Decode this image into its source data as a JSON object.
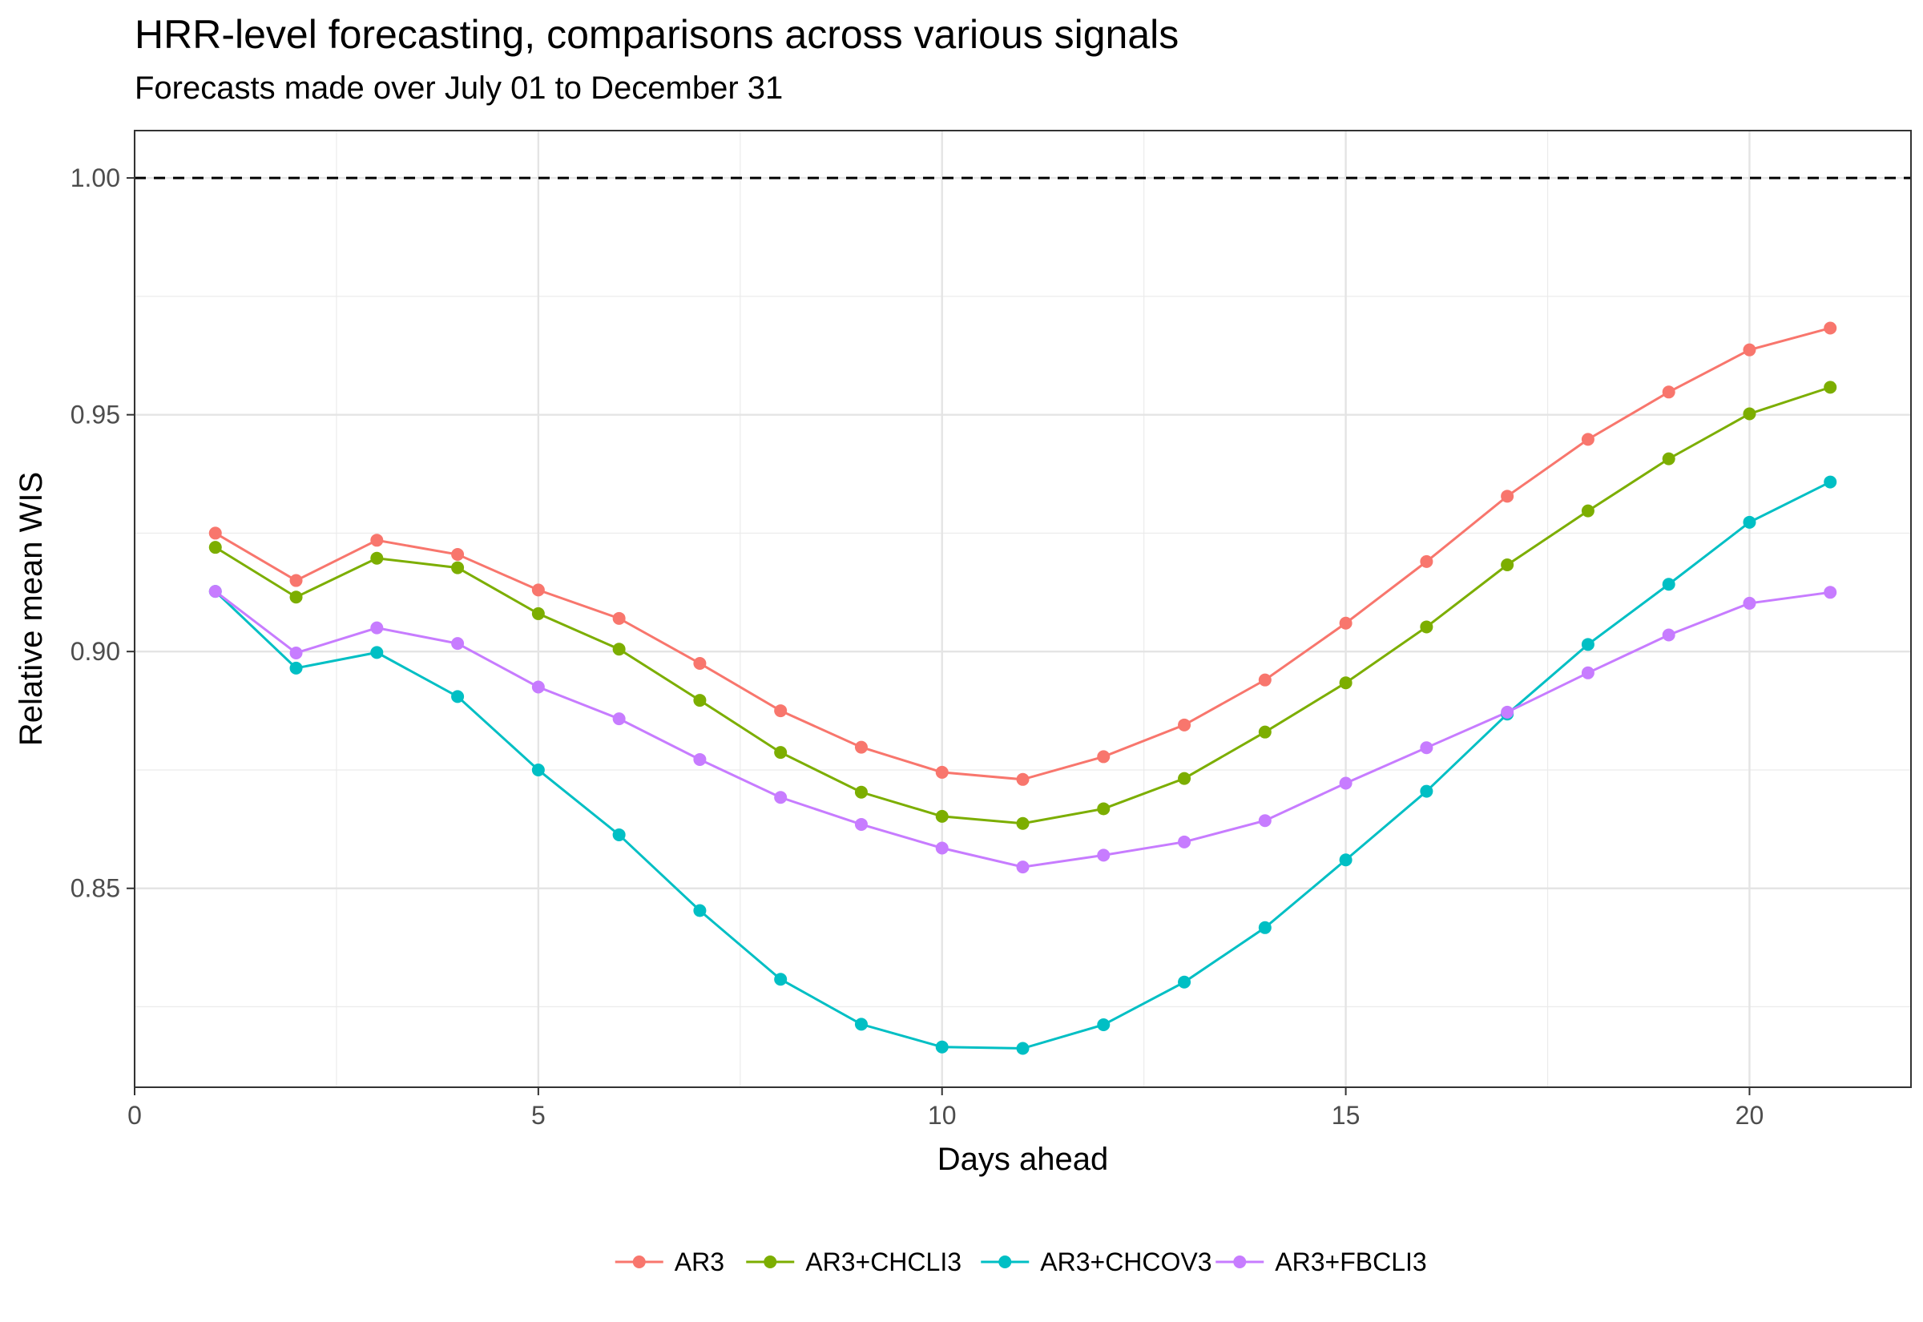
{
  "chart_data": {
    "type": "line",
    "title": "HRR-level forecasting, comparisons across various signals",
    "subtitle": "Forecasts made over July 01 to December 31",
    "xlabel": "Days ahead",
    "ylabel": "Relative mean WIS",
    "xlim": [
      0,
      22
    ],
    "ylim": [
      0.808,
      1.01
    ],
    "x_ticks": [
      0,
      5,
      10,
      15,
      20
    ],
    "x_tick_labels": [
      "0",
      "5",
      "10",
      "15",
      "20"
    ],
    "y_ticks": [
      0.85,
      0.9,
      0.95,
      1.0
    ],
    "y_tick_labels": [
      "0.85",
      "0.90",
      "0.95",
      "1.00"
    ],
    "reference_line": 1.0,
    "grid": true,
    "legend_position": "bottom",
    "x": [
      1,
      2,
      3,
      4,
      5,
      6,
      7,
      8,
      9,
      10,
      11,
      12,
      13,
      14,
      15,
      16,
      17,
      18,
      19,
      20,
      21
    ],
    "series": [
      {
        "name": "AR3",
        "color": "#F8766D",
        "values": [
          0.925,
          0.915,
          0.9235,
          0.9205,
          0.913,
          0.907,
          0.8975,
          0.8875,
          0.8798,
          0.8745,
          0.873,
          0.8778,
          0.8845,
          0.894,
          0.906,
          0.919,
          0.9328,
          0.9448,
          0.9548,
          0.9637,
          0.9683
        ]
      },
      {
        "name": "AR3+CHCLI3",
        "color": "#7CAE00",
        "values": [
          0.922,
          0.9115,
          0.9197,
          0.9177,
          0.908,
          0.9005,
          0.8897,
          0.8787,
          0.8703,
          0.8652,
          0.8637,
          0.8668,
          0.8732,
          0.883,
          0.8934,
          0.9052,
          0.9183,
          0.9297,
          0.9407,
          0.9502,
          0.9558
        ]
      },
      {
        "name": "AR3+CHCOV3",
        "color": "#00BFC4",
        "values": [
          0.9127,
          0.8965,
          0.8998,
          0.8905,
          0.875,
          0.8613,
          0.8453,
          0.8308,
          0.8213,
          0.8165,
          0.8162,
          0.8212,
          0.8302,
          0.8417,
          0.856,
          0.8705,
          0.8868,
          0.9015,
          0.9142,
          0.9273,
          0.9358
        ]
      },
      {
        "name": "AR3+FBCLI3",
        "color": "#C77CFF",
        "values": [
          0.9127,
          0.8997,
          0.905,
          0.9017,
          0.8925,
          0.8858,
          0.8772,
          0.8692,
          0.8635,
          0.8585,
          0.8545,
          0.857,
          0.8598,
          0.8643,
          0.8722,
          0.8797,
          0.8872,
          0.8955,
          0.9035,
          0.9102,
          0.9125
        ]
      }
    ]
  }
}
